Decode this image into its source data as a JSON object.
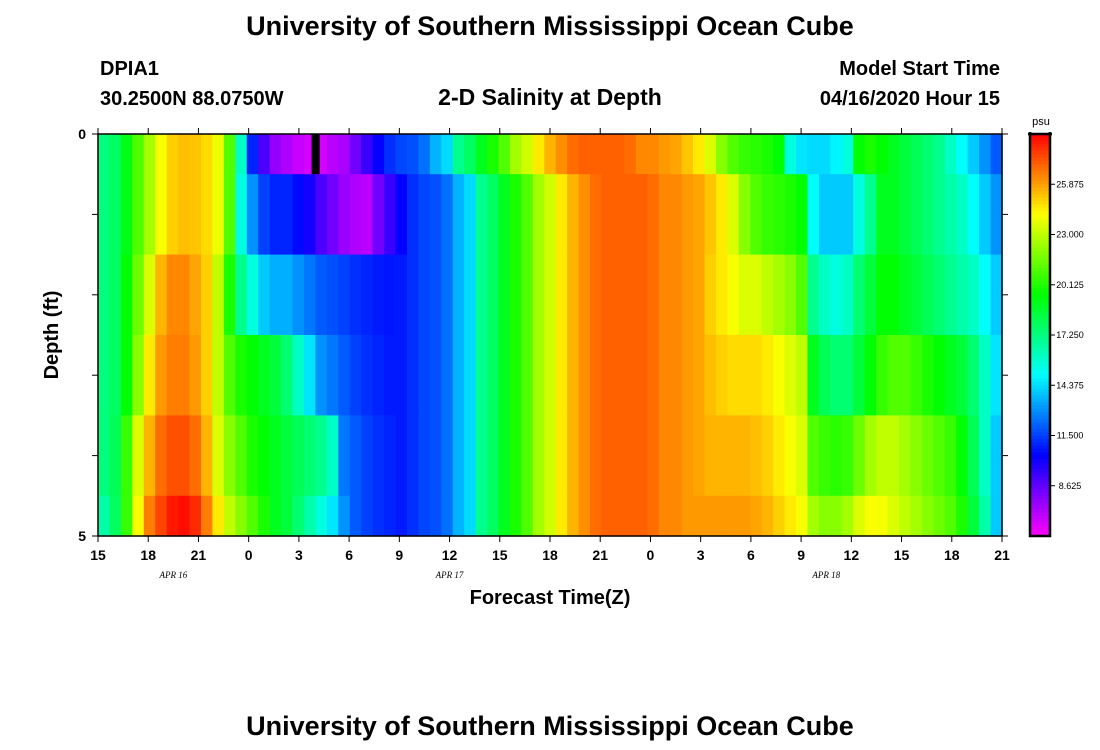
{
  "header": {
    "title": "University of Southern Mississippi Ocean Cube",
    "station_id": "DPIA1",
    "station_coords": "30.2500N 88.0750W",
    "plot_title": "2-D Salinity at Depth",
    "model_start_label": "Model Start Time",
    "model_start_value": "04/16/2020 Hour 15"
  },
  "footer": {
    "title": "University of Southern Mississippi Ocean Cube"
  },
  "chart_data": {
    "type": "heatmap",
    "title": "2-D Salinity at Depth",
    "xlabel": "Forecast Time(Z)",
    "ylabel": "Depth (ft)",
    "ylim": [
      0,
      5
    ],
    "y_tick_labels": [
      "0",
      "5"
    ],
    "x_tick_labels": [
      "15",
      "18",
      "21",
      "0",
      "3",
      "6",
      "9",
      "12",
      "15",
      "18",
      "21",
      "0",
      "3",
      "6",
      "9",
      "12",
      "15",
      "18",
      "21"
    ],
    "x_hours_from_start": [
      0,
      3,
      6,
      9,
      12,
      15,
      18,
      21,
      24,
      27,
      30,
      33,
      36,
      39,
      42,
      45,
      48,
      51,
      54
    ],
    "date_labels": [
      {
        "text": "APR 16",
        "hour": 4.5
      },
      {
        "text": "APR 17",
        "hour": 21
      },
      {
        "text": "APR 18",
        "hour": 43.5
      }
    ],
    "colorbar": {
      "unit": "psu",
      "min": 5.75,
      "max": 28.75,
      "tick_labels": [
        "25.875",
        "23.000",
        "20.125",
        "17.250",
        "14.375",
        "11.500",
        "8.625"
      ],
      "tick_values": [
        25.875,
        23.0,
        20.125,
        17.25,
        14.375,
        11.5,
        8.625
      ]
    },
    "depth_layers": [
      0.5,
      1.5,
      2.5,
      3.5,
      4.5
    ],
    "missing_cell": {
      "hour": 13,
      "depth_layer": 0
    },
    "series": [
      {
        "name": "0-0.5 ft",
        "values": [
          17.3,
          17.8,
          19.2,
          21,
          22.5,
          24,
          25,
          25.3,
          25.2,
          24.8,
          23.8,
          21,
          16,
          11,
          9,
          7.7,
          7.2,
          6.8,
          6.5,
          6.5,
          7,
          7.3,
          8.3,
          9.3,
          10.3,
          11.2,
          11.6,
          11.8,
          12.4,
          13.6,
          14.3,
          17,
          17.8,
          19,
          20,
          21,
          22.5,
          23.3,
          24.5,
          25.5,
          26.2,
          26.8,
          27,
          27,
          27,
          27,
          26.8,
          26.3,
          26.3,
          26,
          25.8,
          25.2,
          24.5,
          23.5,
          22,
          21,
          20.5,
          20.3,
          20,
          19.5,
          15.5,
          14.5,
          14.3,
          14.3,
          14.8,
          15.5,
          19.5,
          20,
          19.5,
          19,
          18.5,
          18,
          17.5,
          17,
          16,
          15,
          14,
          13,
          12
        ]
      },
      {
        "name": "0.5-1.5 ft",
        "values": [
          17.3,
          17.8,
          19.2,
          21,
          22.5,
          24,
          25,
          25.3,
          25.2,
          24.8,
          23.8,
          21,
          15.5,
          13,
          11.5,
          11,
          11,
          10.5,
          10,
          9,
          8.3,
          7.6,
          7.2,
          7,
          8.3,
          9.3,
          10.3,
          11.2,
          11.6,
          11.8,
          12.4,
          13.6,
          14.3,
          17,
          17.8,
          19,
          20,
          21,
          22.5,
          23.3,
          24.5,
          25.5,
          26.2,
          26.8,
          27,
          27,
          27,
          27,
          26.8,
          26.3,
          26.3,
          26,
          25.8,
          25.2,
          24.5,
          23.5,
          22,
          21,
          20.5,
          20.3,
          20,
          19.5,
          15,
          14,
          14,
          14,
          15.5,
          17,
          19,
          19,
          18.5,
          18,
          17.5,
          17,
          16.5,
          16,
          15,
          14,
          13
        ]
      },
      {
        "name": "1.5-2.5 ft",
        "values": [
          17.3,
          17.8,
          19.5,
          21.5,
          23.5,
          25.5,
          26.3,
          26.3,
          25.8,
          25,
          23,
          20,
          17,
          15.5,
          14,
          13.5,
          13.5,
          13,
          12.5,
          12,
          11.8,
          11.5,
          11.2,
          11,
          10.8,
          10.7,
          10.8,
          11.2,
          11.6,
          11.8,
          12.4,
          13.6,
          14.3,
          17,
          17.8,
          19,
          20,
          21,
          22.5,
          23.3,
          24.5,
          25.5,
          26.2,
          26.8,
          27,
          27,
          27,
          27,
          26.8,
          26.3,
          26.3,
          26,
          25.8,
          25,
          24.5,
          24,
          23.5,
          23.5,
          23,
          22.5,
          22,
          21,
          17,
          16,
          15.5,
          16,
          17.5,
          18.5,
          19.5,
          19.5,
          19,
          18.5,
          18,
          17.5,
          17,
          16.5,
          16,
          15,
          14
        ]
      },
      {
        "name": "2.5-3.5 ft",
        "values": [
          17.3,
          17.8,
          19.5,
          22,
          24.5,
          26,
          26.5,
          26.5,
          26,
          25,
          23,
          21,
          20,
          19.5,
          19,
          18.5,
          17.5,
          16,
          14.5,
          13,
          12.5,
          12,
          11.5,
          11.2,
          11,
          10.8,
          10.8,
          11.2,
          11.6,
          11.8,
          12.4,
          13.6,
          14.3,
          17,
          17.8,
          19,
          20,
          21,
          22.5,
          23.3,
          24.5,
          25.5,
          26.2,
          26.8,
          27,
          27,
          27,
          27,
          26.8,
          26.3,
          26.3,
          26,
          25.8,
          25.3,
          25,
          24.8,
          24.8,
          24.8,
          24.5,
          24,
          23.5,
          23,
          19,
          18,
          17.5,
          17.5,
          18.5,
          19.5,
          20.5,
          21,
          21,
          20.5,
          20,
          19.5,
          19,
          18.5,
          17.5,
          16,
          14.5
        ]
      },
      {
        "name": "3.5-4.5 ft",
        "values": [
          17.3,
          18,
          20.5,
          23.5,
          25.5,
          26.8,
          27.3,
          27.3,
          26.8,
          25.5,
          23.5,
          22,
          21,
          20,
          19.5,
          19,
          18.5,
          18,
          17.5,
          17,
          16,
          12.5,
          12,
          11.5,
          11.2,
          11,
          10.8,
          11.2,
          11.6,
          11.8,
          12.4,
          13.6,
          14.3,
          17,
          17.8,
          19,
          20,
          21,
          22.5,
          23.3,
          24.5,
          25.5,
          26.2,
          26.8,
          27,
          27,
          27,
          27,
          26.8,
          26.3,
          26.3,
          26,
          25.8,
          25.5,
          25.5,
          25.5,
          25.5,
          25.3,
          25,
          24.5,
          24,
          23.5,
          21,
          20.5,
          20.3,
          20.5,
          21.5,
          22.5,
          23,
          23,
          22.5,
          22,
          21.5,
          21,
          20.5,
          19.5,
          18,
          16,
          14
        ]
      },
      {
        "name": "4.5-5 ft",
        "values": [
          16.5,
          17.8,
          20.5,
          24,
          26.5,
          27.5,
          28.3,
          28.5,
          28,
          26.5,
          24.5,
          23,
          22,
          21,
          20,
          19,
          18.5,
          17.5,
          16.5,
          15.5,
          14.5,
          13,
          12,
          11.5,
          11.2,
          11,
          10.8,
          11.2,
          11.6,
          11.8,
          12.4,
          13.6,
          14.3,
          17,
          17.8,
          19,
          20,
          21,
          22.5,
          23.3,
          24.5,
          25.5,
          26.2,
          26.8,
          27,
          27,
          27,
          27,
          26.8,
          26.3,
          26.3,
          26,
          26,
          26,
          26,
          26,
          26,
          25.8,
          25.5,
          25,
          24.5,
          24,
          22.5,
          22,
          22,
          22.5,
          23.5,
          24,
          24,
          23.5,
          23,
          22.5,
          22,
          21.5,
          21,
          20,
          18.5,
          16.5,
          14
        ]
      }
    ]
  }
}
